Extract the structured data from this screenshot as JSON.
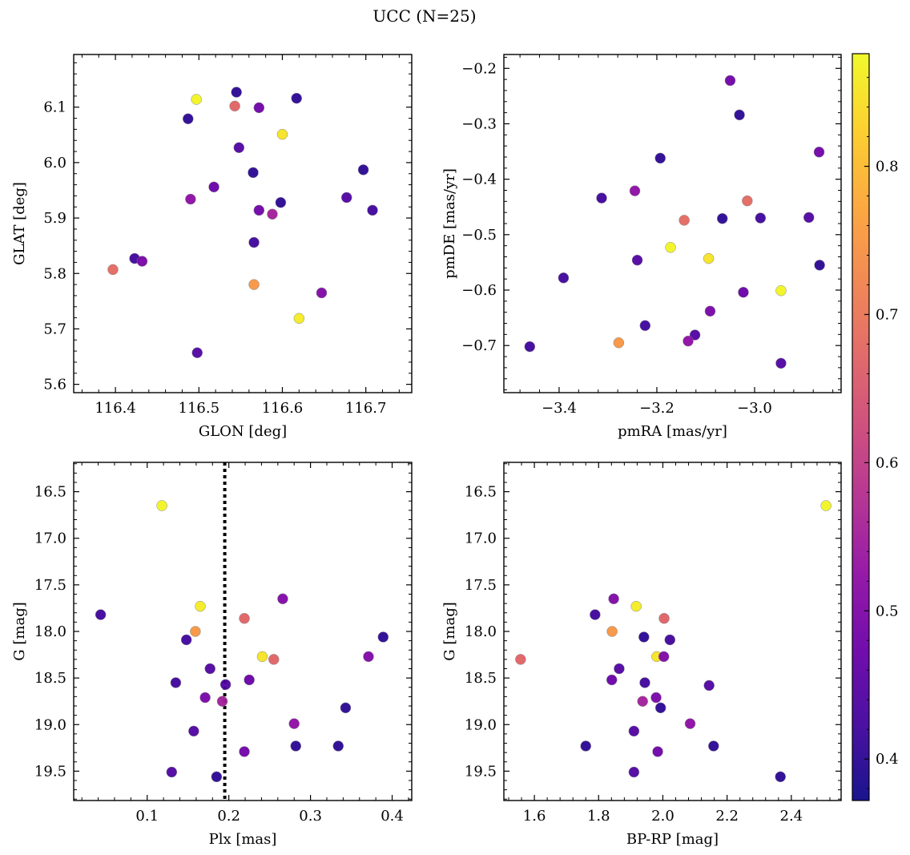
{
  "title": "UCC (N=25)",
  "colormap": "plasma",
  "marker_edge_color": "#888888",
  "colorbar": {
    "min": 0.372,
    "max": 0.876,
    "ticks": [
      0.4,
      0.5,
      0.6,
      0.7,
      0.8
    ]
  },
  "chart_data": [
    {
      "type": "scatter",
      "xlabel": "GLON [deg]",
      "ylabel": "GLAT [deg]",
      "xlim": [
        116.35,
        116.755
      ],
      "ylim": [
        5.585,
        6.195
      ],
      "xticks": [
        116.4,
        116.5,
        116.6,
        116.7
      ],
      "yticks": [
        5.6,
        5.7,
        5.8,
        5.9,
        6.0,
        6.1
      ],
      "points": [
        {
          "x": 116.497,
          "y": 6.114,
          "c": 0.87
        },
        {
          "x": 116.545,
          "y": 6.127,
          "c": 0.4
        },
        {
          "x": 116.543,
          "y": 6.102,
          "c": 0.67
        },
        {
          "x": 116.572,
          "y": 6.099,
          "c": 0.48
        },
        {
          "x": 116.617,
          "y": 6.116,
          "c": 0.4
        },
        {
          "x": 116.487,
          "y": 6.079,
          "c": 0.4
        },
        {
          "x": 116.6,
          "y": 6.051,
          "c": 0.85
        },
        {
          "x": 116.548,
          "y": 6.027,
          "c": 0.44
        },
        {
          "x": 116.565,
          "y": 5.982,
          "c": 0.4
        },
        {
          "x": 116.697,
          "y": 5.987,
          "c": 0.4
        },
        {
          "x": 116.518,
          "y": 5.956,
          "c": 0.47
        },
        {
          "x": 116.49,
          "y": 5.934,
          "c": 0.52
        },
        {
          "x": 116.677,
          "y": 5.937,
          "c": 0.44
        },
        {
          "x": 116.598,
          "y": 5.928,
          "c": 0.4
        },
        {
          "x": 116.572,
          "y": 5.914,
          "c": 0.48
        },
        {
          "x": 116.708,
          "y": 5.914,
          "c": 0.42
        },
        {
          "x": 116.588,
          "y": 5.907,
          "c": 0.55
        },
        {
          "x": 116.566,
          "y": 5.856,
          "c": 0.42
        },
        {
          "x": 116.423,
          "y": 5.827,
          "c": 0.42
        },
        {
          "x": 116.432,
          "y": 5.822,
          "c": 0.49
        },
        {
          "x": 116.397,
          "y": 5.807,
          "c": 0.68
        },
        {
          "x": 116.566,
          "y": 5.78,
          "c": 0.75
        },
        {
          "x": 116.647,
          "y": 5.765,
          "c": 0.5
        },
        {
          "x": 116.62,
          "y": 5.719,
          "c": 0.86
        },
        {
          "x": 116.498,
          "y": 5.657,
          "c": 0.44
        }
      ]
    },
    {
      "type": "scatter",
      "xlabel": "pmRA [mas/yr]",
      "ylabel": "pmDE [mas/yr]",
      "xlim": [
        -3.513,
        -2.823
      ],
      "ylim": [
        -0.785,
        -0.175
      ],
      "xticks": [
        -3.4,
        -3.2,
        -3.0
      ],
      "yticks": [
        -0.2,
        -0.3,
        -0.4,
        -0.5,
        -0.6,
        -0.7
      ],
      "points": [
        {
          "x": -3.05,
          "y": -0.222,
          "c": 0.48
        },
        {
          "x": -3.031,
          "y": -0.284,
          "c": 0.4
        },
        {
          "x": -2.868,
          "y": -0.351,
          "c": 0.48
        },
        {
          "x": -3.193,
          "y": -0.362,
          "c": 0.4
        },
        {
          "x": -3.313,
          "y": -0.434,
          "c": 0.42
        },
        {
          "x": -3.245,
          "y": -0.421,
          "c": 0.52
        },
        {
          "x": -3.015,
          "y": -0.439,
          "c": 0.68
        },
        {
          "x": -3.144,
          "y": -0.474,
          "c": 0.68
        },
        {
          "x": -3.066,
          "y": -0.471,
          "c": 0.4
        },
        {
          "x": -2.988,
          "y": -0.47,
          "c": 0.42
        },
        {
          "x": -2.889,
          "y": -0.469,
          "c": 0.44
        },
        {
          "x": -3.172,
          "y": -0.523,
          "c": 0.87
        },
        {
          "x": -3.094,
          "y": -0.543,
          "c": 0.85
        },
        {
          "x": -3.24,
          "y": -0.546,
          "c": 0.44
        },
        {
          "x": -2.867,
          "y": -0.555,
          "c": 0.4
        },
        {
          "x": -3.391,
          "y": -0.578,
          "c": 0.42
        },
        {
          "x": -3.023,
          "y": -0.604,
          "c": 0.47
        },
        {
          "x": -2.946,
          "y": -0.601,
          "c": 0.87
        },
        {
          "x": -3.091,
          "y": -0.638,
          "c": 0.49
        },
        {
          "x": -3.224,
          "y": -0.664,
          "c": 0.42
        },
        {
          "x": -3.122,
          "y": -0.681,
          "c": 0.44
        },
        {
          "x": -3.136,
          "y": -0.692,
          "c": 0.52
        },
        {
          "x": -3.278,
          "y": -0.695,
          "c": 0.75
        },
        {
          "x": -3.46,
          "y": -0.702,
          "c": 0.42
        },
        {
          "x": -2.946,
          "y": -0.732,
          "c": 0.44
        }
      ]
    },
    {
      "type": "scatter",
      "xlabel": "Plx [mas]",
      "ylabel": "G [mag]",
      "xlim": [
        0.01,
        0.424
      ],
      "ylim": [
        19.815,
        16.185
      ],
      "xticks": [
        0.1,
        0.2,
        0.3,
        0.4
      ],
      "yticks": [
        16.5,
        17.0,
        17.5,
        18.0,
        18.5,
        19.0,
        19.5
      ],
      "annotations": [
        {
          "type": "vline",
          "x": 0.195,
          "style": "dotted"
        }
      ],
      "points": [
        {
          "x": 0.118,
          "y": 16.65,
          "c": 0.87
        },
        {
          "x": 0.165,
          "y": 17.73,
          "c": 0.86
        },
        {
          "x": 0.266,
          "y": 17.65,
          "c": 0.5
        },
        {
          "x": 0.043,
          "y": 17.82,
          "c": 0.42
        },
        {
          "x": 0.219,
          "y": 17.86,
          "c": 0.67
        },
        {
          "x": 0.159,
          "y": 18.0,
          "c": 0.75
        },
        {
          "x": 0.148,
          "y": 18.09,
          "c": 0.42
        },
        {
          "x": 0.389,
          "y": 18.06,
          "c": 0.4
        },
        {
          "x": 0.241,
          "y": 18.27,
          "c": 0.85
        },
        {
          "x": 0.255,
          "y": 18.3,
          "c": 0.67
        },
        {
          "x": 0.371,
          "y": 18.27,
          "c": 0.5
        },
        {
          "x": 0.177,
          "y": 18.4,
          "c": 0.44
        },
        {
          "x": 0.135,
          "y": 18.55,
          "c": 0.42
        },
        {
          "x": 0.196,
          "y": 18.57,
          "c": 0.44
        },
        {
          "x": 0.225,
          "y": 18.52,
          "c": 0.47
        },
        {
          "x": 0.171,
          "y": 18.71,
          "c": 0.49
        },
        {
          "x": 0.192,
          "y": 18.75,
          "c": 0.55
        },
        {
          "x": 0.343,
          "y": 18.82,
          "c": 0.4
        },
        {
          "x": 0.28,
          "y": 18.99,
          "c": 0.52
        },
        {
          "x": 0.157,
          "y": 19.07,
          "c": 0.44
        },
        {
          "x": 0.282,
          "y": 19.23,
          "c": 0.4
        },
        {
          "x": 0.334,
          "y": 19.23,
          "c": 0.4
        },
        {
          "x": 0.219,
          "y": 19.29,
          "c": 0.48
        },
        {
          "x": 0.13,
          "y": 19.51,
          "c": 0.44
        },
        {
          "x": 0.185,
          "y": 19.56,
          "c": 0.4
        }
      ]
    },
    {
      "type": "scatter",
      "xlabel": "BP-RP [mag]",
      "ylabel": "G [mag]",
      "xlim": [
        1.505,
        2.555
      ],
      "ylim": [
        19.815,
        16.185
      ],
      "xticks": [
        1.6,
        1.8,
        2.0,
        2.2,
        2.4
      ],
      "yticks": [
        16.5,
        17.0,
        17.5,
        18.0,
        18.5,
        19.0,
        19.5
      ],
      "points": [
        {
          "x": 2.508,
          "y": 16.65,
          "c": 0.87
        },
        {
          "x": 1.917,
          "y": 17.73,
          "c": 0.86
        },
        {
          "x": 1.847,
          "y": 17.65,
          "c": 0.5
        },
        {
          "x": 1.789,
          "y": 17.82,
          "c": 0.42
        },
        {
          "x": 2.004,
          "y": 17.86,
          "c": 0.67
        },
        {
          "x": 1.842,
          "y": 18.0,
          "c": 0.75
        },
        {
          "x": 1.941,
          "y": 18.06,
          "c": 0.4
        },
        {
          "x": 2.022,
          "y": 18.09,
          "c": 0.42
        },
        {
          "x": 1.557,
          "y": 18.3,
          "c": 0.67
        },
        {
          "x": 1.981,
          "y": 18.27,
          "c": 0.85
        },
        {
          "x": 2.003,
          "y": 18.27,
          "c": 0.5
        },
        {
          "x": 1.864,
          "y": 18.4,
          "c": 0.44
        },
        {
          "x": 1.841,
          "y": 18.52,
          "c": 0.47
        },
        {
          "x": 1.944,
          "y": 18.55,
          "c": 0.42
        },
        {
          "x": 2.144,
          "y": 18.58,
          "c": 0.44
        },
        {
          "x": 1.979,
          "y": 18.71,
          "c": 0.49
        },
        {
          "x": 1.937,
          "y": 18.75,
          "c": 0.55
        },
        {
          "x": 1.993,
          "y": 18.82,
          "c": 0.4
        },
        {
          "x": 2.085,
          "y": 18.99,
          "c": 0.52
        },
        {
          "x": 1.91,
          "y": 19.07,
          "c": 0.44
        },
        {
          "x": 1.76,
          "y": 19.23,
          "c": 0.4
        },
        {
          "x": 2.158,
          "y": 19.23,
          "c": 0.4
        },
        {
          "x": 1.984,
          "y": 19.29,
          "c": 0.48
        },
        {
          "x": 1.91,
          "y": 19.51,
          "c": 0.44
        },
        {
          "x": 2.366,
          "y": 19.56,
          "c": 0.4
        }
      ]
    }
  ]
}
